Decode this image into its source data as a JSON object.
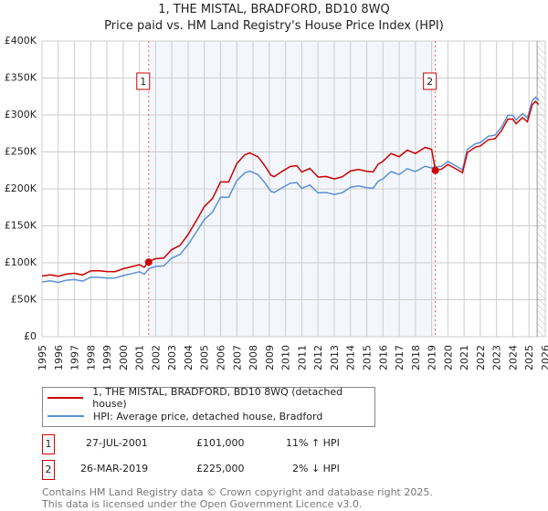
{
  "chart_data": {
    "type": "line",
    "title": "1, THE MISTAL, BRADFORD, BD10 8WQ",
    "subtitle": "Price paid vs. HM Land Registry's House Price Index (HPI)",
    "xlim": [
      1995,
      2026
    ],
    "ylim": [
      0,
      400000
    ],
    "y_ticks": [
      {
        "v": 0,
        "label": "£0"
      },
      {
        "v": 50000,
        "label": "£50K"
      },
      {
        "v": 100000,
        "label": "£100K"
      },
      {
        "v": 150000,
        "label": "£150K"
      },
      {
        "v": 200000,
        "label": "£200K"
      },
      {
        "v": 250000,
        "label": "£250K"
      },
      {
        "v": 300000,
        "label": "£300K"
      },
      {
        "v": 350000,
        "label": "£350K"
      },
      {
        "v": 400000,
        "label": "£400K"
      }
    ],
    "x_ticks": [
      "1995",
      "1996",
      "1997",
      "1998",
      "1999",
      "2000",
      "2001",
      "2002",
      "2003",
      "2004",
      "2005",
      "2006",
      "2007",
      "2008",
      "2009",
      "2010",
      "2011",
      "2012",
      "2013",
      "2014",
      "2015",
      "2016",
      "2017",
      "2018",
      "2019",
      "2020",
      "2021",
      "2022",
      "2023",
      "2024",
      "2025",
      "2026"
    ],
    "grid": true,
    "shaded_range": [
      2001.57,
      2019.23
    ],
    "forecast_hatch_from": 2025.5,
    "series": [
      {
        "name": "1, THE MISTAL, BRADFORD, BD10 8WQ (detached house)",
        "color": "#cc0000"
      },
      {
        "name": "HPI: Average price, detached house, Bradford",
        "color": "#5b8fd6",
        "x": [
          1995,
          1995.5,
          1996,
          1996.5,
          1997,
          1997.5,
          1998,
          1998.5,
          1999,
          1999.5,
          2000,
          2000.5,
          2001,
          2001.3,
          2001.57,
          2002,
          2002.5,
          2003,
          2003.5,
          2004,
          2004.5,
          2005,
          2005.5,
          2006,
          2006.5,
          2007,
          2007.5,
          2007.8,
          2008.3,
          2008.7,
          2009.1,
          2009.3,
          2009.8,
          2010.3,
          2010.7,
          2011,
          2011.5,
          2012,
          2012.5,
          2013,
          2013.5,
          2014,
          2014.5,
          2015,
          2015.4,
          2015.7,
          2016,
          2016.5,
          2017,
          2017.5,
          2018,
          2018.6,
          2019,
          2019.23,
          2019.6,
          2020,
          2020.5,
          2020.9,
          2021.2,
          2021.7,
          2022,
          2022.5,
          2022.9,
          2023.3,
          2023.7,
          2024,
          2024.2,
          2024.6,
          2024.9,
          2025.2,
          2025.4,
          2025.6
        ],
        "y": [
          74000,
          74500,
          75000,
          75500,
          77000,
          76500,
          79000,
          81000,
          80000,
          78000,
          84000,
          85000,
          87000,
          86000,
          91000,
          95000,
          97000,
          105000,
          112000,
          125000,
          140000,
          160000,
          168000,
          188000,
          190000,
          210000,
          222000,
          225000,
          218000,
          210000,
          197000,
          194000,
          203000,
          207000,
          208000,
          202000,
          204000,
          195000,
          196000,
          191000,
          196000,
          202000,
          203000,
          203000,
          200000,
          210000,
          215000,
          222000,
          220000,
          228000,
          222000,
          232000,
          228000,
          229000,
          232000,
          236000,
          231000,
          227000,
          252000,
          262000,
          263000,
          270000,
          274000,
          283000,
          299000,
          301000,
          292000,
          302000,
          297000,
          318000,
          325000,
          320000
        ]
      }
    ],
    "sales": [
      {
        "id": "1",
        "x": 2001.57,
        "price": 101000,
        "date": "27-JUL-2001",
        "price_label": "£101,000",
        "hpi_note": "11% ↑ HPI"
      },
      {
        "id": "2",
        "x": 2019.23,
        "price": 225000,
        "date": "26-MAR-2019",
        "price_label": "£225,000",
        "hpi_note": "2% ↓ HPI"
      }
    ]
  },
  "legend": {
    "red": "1, THE MISTAL, BRADFORD, BD10 8WQ (detached house)",
    "blue": "HPI: Average price, detached house, Bradford"
  },
  "footer": {
    "line1": "Contains HM Land Registry data © Crown copyright and database right 2025.",
    "line2": "This data is licensed under the Open Government Licence v3.0."
  }
}
